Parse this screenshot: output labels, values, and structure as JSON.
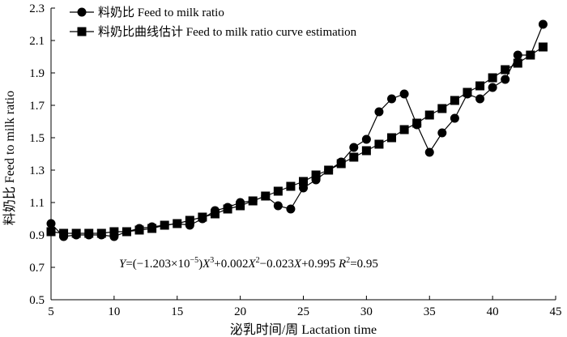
{
  "chart_data": {
    "type": "line",
    "xlabel": "泌乳时间/周 Lactation time",
    "ylabel": "料奶比 Feed to milk ratio",
    "xlim": [
      5,
      45
    ],
    "ylim": [
      0.5,
      2.3
    ],
    "x_ticks": [
      "5",
      "10",
      "15",
      "20",
      "25",
      "30",
      "35",
      "40",
      "45"
    ],
    "y_ticks": [
      "0.5",
      "0.7",
      "0.9",
      "1.1",
      "1.3",
      "1.5",
      "1.7",
      "1.9",
      "2.1",
      "2.3"
    ],
    "grid": false,
    "legend_position": "top-left",
    "series": [
      {
        "name": "料奶比  Feed to milk ratio",
        "marker": "circle",
        "x": [
          5,
          6,
          7,
          8,
          9,
          10,
          11,
          12,
          13,
          14,
          15,
          16,
          17,
          18,
          19,
          20,
          21,
          22,
          23,
          24,
          25,
          26,
          27,
          28,
          29,
          30,
          31,
          32,
          33,
          34,
          35,
          36,
          37,
          38,
          39,
          40,
          41,
          42,
          43,
          44
        ],
        "values": [
          0.97,
          0.89,
          0.9,
          0.9,
          0.9,
          0.89,
          0.92,
          0.94,
          0.95,
          0.96,
          0.97,
          0.96,
          1.0,
          1.05,
          1.07,
          1.1,
          1.11,
          1.14,
          1.08,
          1.06,
          1.19,
          1.24,
          1.3,
          1.35,
          1.44,
          1.49,
          1.66,
          1.74,
          1.77,
          1.58,
          1.41,
          1.53,
          1.62,
          1.77,
          1.74,
          1.81,
          1.86,
          2.01,
          2.01,
          2.2
        ]
      },
      {
        "name": "料奶比曲线估计  Feed to milk ratio curve estimation",
        "marker": "square",
        "x": [
          5,
          6,
          7,
          8,
          9,
          10,
          11,
          12,
          13,
          14,
          15,
          16,
          17,
          18,
          19,
          20,
          21,
          22,
          23,
          24,
          25,
          26,
          27,
          28,
          29,
          30,
          31,
          32,
          33,
          34,
          35,
          36,
          37,
          38,
          39,
          40,
          41,
          42,
          43,
          44
        ],
        "values": [
          0.92,
          0.91,
          0.91,
          0.91,
          0.91,
          0.92,
          0.92,
          0.93,
          0.94,
          0.96,
          0.97,
          0.99,
          1.01,
          1.03,
          1.06,
          1.08,
          1.11,
          1.14,
          1.17,
          1.2,
          1.23,
          1.27,
          1.3,
          1.34,
          1.38,
          1.42,
          1.46,
          1.5,
          1.55,
          1.59,
          1.64,
          1.68,
          1.73,
          1.78,
          1.82,
          1.87,
          1.92,
          1.96,
          2.01,
          2.06
        ]
      }
    ],
    "annotation": {
      "equation_parts": [
        {
          "t": "Y",
          "it": true
        },
        {
          "t": "=(−1.203×10"
        },
        {
          "t": "−5",
          "sup": true
        },
        {
          "t": ")"
        },
        {
          "t": "X",
          "it": true
        },
        {
          "t": "3",
          "sup": true
        },
        {
          "t": "+0.002"
        },
        {
          "t": "X",
          "it": true
        },
        {
          "t": "2",
          "sup": true
        },
        {
          "t": "−0.023"
        },
        {
          "t": "X",
          "it": true
        },
        {
          "t": "+0.995      "
        },
        {
          "t": "R",
          "it": true
        },
        {
          "t": "2",
          "sup": true
        },
        {
          "t": "=0.95"
        }
      ]
    }
  }
}
